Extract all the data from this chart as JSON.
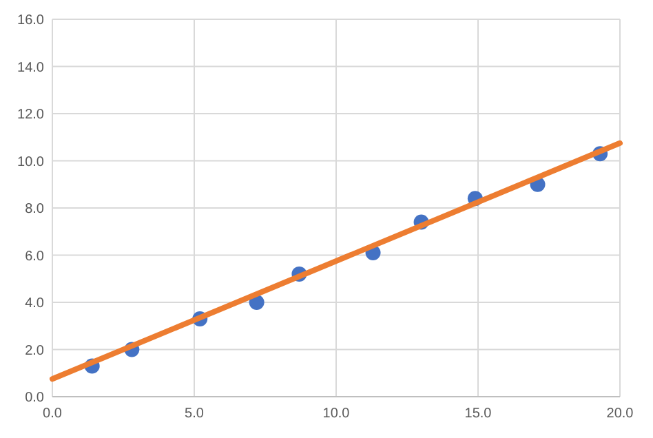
{
  "chart_data": {
    "type": "scatter",
    "xlim": [
      0,
      20
    ],
    "ylim": [
      0,
      16
    ],
    "xticks": [
      {
        "value": 0,
        "label": "0.0"
      },
      {
        "value": 5,
        "label": "5.0"
      },
      {
        "value": 10,
        "label": "10.0"
      },
      {
        "value": 15,
        "label": "15.0"
      },
      {
        "value": 20,
        "label": "20.0"
      }
    ],
    "yticks": [
      {
        "value": 0,
        "label": "0.0"
      },
      {
        "value": 2,
        "label": "2.0"
      },
      {
        "value": 4,
        "label": "4.0"
      },
      {
        "value": 6,
        "label": "6.0"
      },
      {
        "value": 8,
        "label": "8.0"
      },
      {
        "value": 10,
        "label": "10.0"
      },
      {
        "value": 12,
        "label": "12.0"
      },
      {
        "value": 14,
        "label": "14.0"
      },
      {
        "value": 16,
        "label": "16.0"
      }
    ],
    "grid": true,
    "series": [
      {
        "marker": "circle",
        "color": "#4472c4",
        "x": [
          1.4,
          2.8,
          5.2,
          7.2,
          8.7,
          11.3,
          13.0,
          14.9,
          17.1,
          19.3
        ],
        "values": [
          1.3,
          2.0,
          3.3,
          4.0,
          5.2,
          6.1,
          7.4,
          8.4,
          9.0,
          10.3
        ]
      },
      {
        "type": "line",
        "marker": "none",
        "line_style": "solid",
        "color": "#ed7d31",
        "x": [
          0,
          20
        ],
        "values": [
          0.75,
          10.75
        ]
      }
    ]
  }
}
